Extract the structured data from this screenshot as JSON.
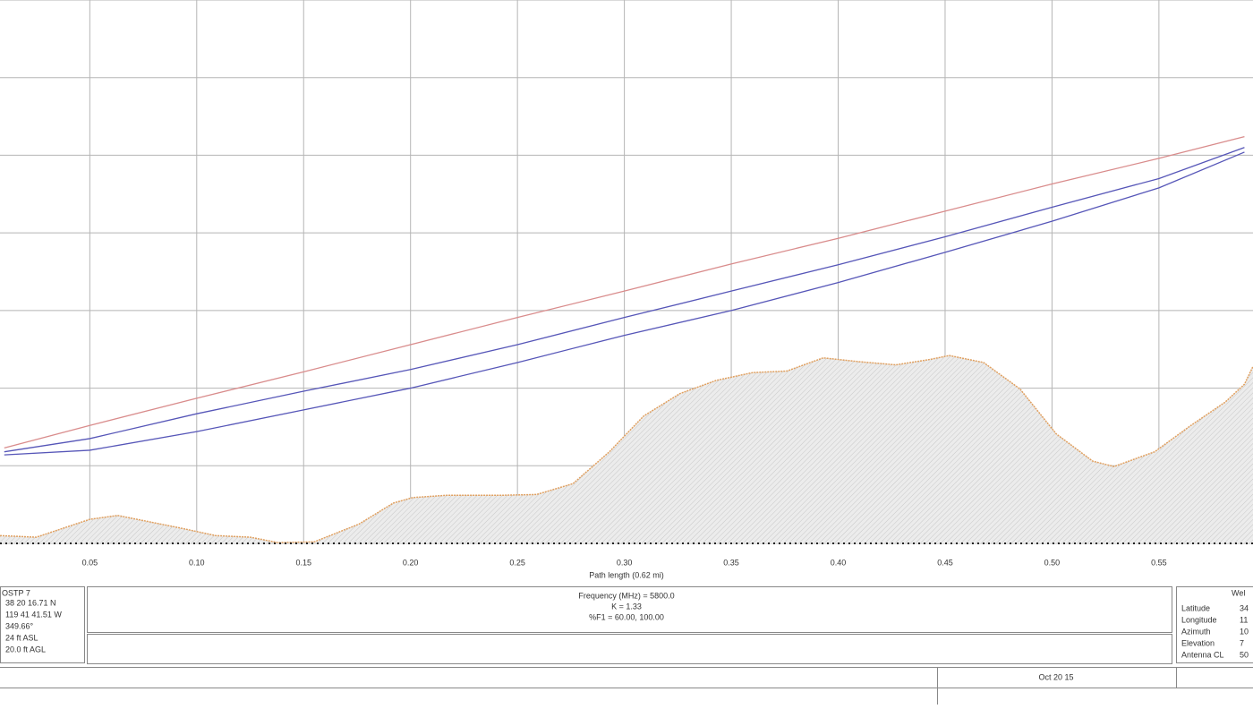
{
  "chart_data": {
    "type": "line",
    "x_label": "Path length (0.62 mi)",
    "xlim": [
      0.008,
      0.594
    ],
    "ylim": [
      0,
      7
    ],
    "xticks": [
      0.05,
      {
        "value": 0.1,
        "label": "0.10"
      },
      0.15,
      {
        "value": 0.2,
        "label": "0.20"
      },
      0.25,
      {
        "value": 0.3,
        "label": "0.30"
      },
      0.35,
      {
        "value": 0.4,
        "label": "0.40"
      },
      0.45,
      {
        "value": 0.5,
        "label": "0.50"
      },
      0.55
    ],
    "grid": true,
    "x": [
      0.01,
      0.05,
      0.1,
      0.15,
      0.2,
      0.25,
      0.3,
      0.35,
      0.4,
      0.45,
      0.5,
      0.55,
      0.59
    ],
    "series": [
      {
        "color": "#d98c8c",
        "values": [
          1.23,
          1.52,
          1.87,
          2.21,
          2.56,
          2.91,
          3.25,
          3.6,
          3.93,
          4.28,
          4.63,
          4.96,
          5.24
        ]
      },
      {
        "color": "#5656b8",
        "values": [
          1.18,
          1.35,
          1.67,
          1.96,
          2.24,
          2.56,
          2.91,
          3.25,
          3.59,
          3.95,
          4.33,
          4.7,
          5.1
        ]
      },
      {
        "color": "#5656b8",
        "values": [
          1.14,
          1.2,
          1.44,
          1.72,
          2.0,
          2.33,
          2.68,
          3.0,
          3.36,
          3.75,
          4.15,
          4.58,
          5.04
        ]
      }
    ],
    "terrain": {
      "color": "#e0a060",
      "x": [
        0.008,
        0.025,
        0.05,
        0.063,
        0.092,
        0.109,
        0.125,
        0.138,
        0.155,
        0.176,
        0.192,
        0.201,
        0.217,
        0.243,
        0.259,
        0.276,
        0.293,
        0.309,
        0.326,
        0.343,
        0.36,
        0.376,
        0.393,
        0.41,
        0.427,
        0.443,
        0.452,
        0.468,
        0.485,
        0.502,
        0.519,
        0.529,
        0.548,
        0.565,
        0.581,
        0.59,
        0.594
      ],
      "values": [
        0.1,
        0.08,
        0.31,
        0.36,
        0.2,
        0.1,
        0.08,
        0.01,
        0.02,
        0.25,
        0.52,
        0.59,
        0.62,
        0.62,
        0.63,
        0.77,
        1.18,
        1.64,
        1.93,
        2.1,
        2.2,
        2.22,
        2.39,
        2.34,
        2.3,
        2.37,
        2.42,
        2.33,
        1.99,
        1.41,
        1.06,
        0.99,
        1.18,
        1.52,
        1.82,
        2.05,
        2.28
      ]
    }
  },
  "left_site": {
    "name": "OSTP 7",
    "lines": [
      "38 20 16.71 N",
      "119 41 41.51 W",
      "349.66°",
      "24 ft ASL",
      "20.0 ft AGL"
    ]
  },
  "center_info": [
    "Frequency (MHz) = 5800.0",
    "K = 1.33",
    "%F1 = 60.00, 100.00"
  ],
  "right_site": {
    "name": "Wel",
    "labels": [
      "Latitude",
      "Longitude",
      "Azimuth",
      "Elevation",
      "Antenna CL"
    ],
    "values": [
      "34",
      "11",
      "10",
      "7",
      "50"
    ]
  },
  "date": "Oct 20 15"
}
